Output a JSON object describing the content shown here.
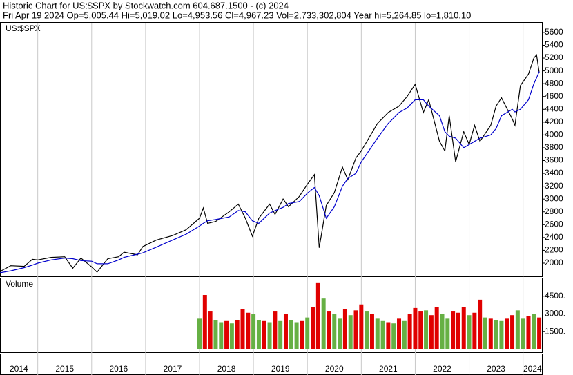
{
  "header": {
    "title": "Historic Chart for US:$SPX by Stockwatch.com 604.687.1500 - (c) 2024",
    "quote": "Fri Apr 19 2024   Op=5,005.44   Hi=5,019.02   Lo=4,953.56   Cl=4,967.23   Vol=2,733,302,804   Year hi=5,264.85   lo=1,810.10"
  },
  "chart_data": [
    {
      "type": "line",
      "label": "US:$SPX",
      "x": [
        2014.3,
        2014.5,
        2014.75,
        2014.9,
        2015.0,
        2015.25,
        2015.5,
        2015.65,
        2015.8,
        2016.0,
        2016.1,
        2016.3,
        2016.5,
        2016.6,
        2016.85,
        2016.95,
        2017.2,
        2017.5,
        2017.75,
        2018.0,
        2018.07,
        2018.15,
        2018.3,
        2018.55,
        2018.72,
        2018.85,
        2018.98,
        2019.1,
        2019.3,
        2019.4,
        2019.55,
        2019.65,
        2019.85,
        2020.0,
        2020.13,
        2020.22,
        2020.35,
        2020.5,
        2020.65,
        2020.75,
        2020.9,
        2021.0,
        2021.3,
        2021.5,
        2021.7,
        2021.85,
        2022.0,
        2022.15,
        2022.25,
        2022.45,
        2022.55,
        2022.63,
        2022.75,
        2022.9,
        2023.0,
        2023.1,
        2023.2,
        2023.4,
        2023.5,
        2023.6,
        2023.8,
        2023.85,
        2023.95,
        2024.1,
        2024.2,
        2024.25,
        2024.3
      ],
      "series": [
        {
          "color": "#000000",
          "values": [
            1870,
            1960,
            1950,
            2060,
            2050,
            2090,
            2100,
            1920,
            2080,
            1940,
            1860,
            2070,
            2100,
            2170,
            2130,
            2260,
            2360,
            2430,
            2520,
            2700,
            2860,
            2620,
            2650,
            2800,
            2920,
            2700,
            2420,
            2700,
            2920,
            2760,
            3000,
            2880,
            3040,
            3230,
            3380,
            2240,
            2900,
            3100,
            3500,
            3300,
            3640,
            3750,
            4180,
            4350,
            4450,
            4600,
            4790,
            4350,
            4550,
            3900,
            3750,
            4300,
            3580,
            4050,
            3850,
            4150,
            3900,
            4150,
            4450,
            4580,
            4250,
            4150,
            4770,
            4950,
            5200,
            5250,
            4967.23
          ]
        },
        {
          "color": "#0000cc",
          "values": [
            1850,
            1880,
            1930,
            1970,
            2000,
            2050,
            2080,
            2070,
            2040,
            2030,
            1990,
            1990,
            2050,
            2090,
            2140,
            2160,
            2250,
            2360,
            2450,
            2580,
            2620,
            2660,
            2680,
            2720,
            2820,
            2800,
            2660,
            2620,
            2780,
            2820,
            2870,
            2930,
            2960,
            3090,
            3180,
            3050,
            2700,
            2880,
            3200,
            3320,
            3400,
            3580,
            3950,
            4180,
            4350,
            4420,
            4550,
            4550,
            4450,
            4300,
            4050,
            3980,
            3950,
            3800,
            3850,
            3900,
            3950,
            4000,
            4100,
            4300,
            4400,
            4360,
            4400,
            4550,
            4800,
            4890,
            4990
          ]
        }
      ],
      "xlim": [
        2014.3,
        2024.35
      ],
      "xticks": [
        2014,
        2015,
        2016,
        2017,
        2018,
        2019,
        2020,
        2021,
        2022,
        2023,
        2024
      ],
      "ylim": [
        1795,
        5750
      ],
      "yticks": [
        2000,
        2200,
        2400,
        2600,
        2800,
        3000,
        3200,
        3400,
        3600,
        3800,
        4000,
        4200,
        4400,
        4600,
        4800,
        5000,
        5200,
        5400,
        5600
      ],
      "grid": true
    },
    {
      "type": "bar",
      "label": "Volume",
      "x": [
        2018.0,
        2018.1,
        2018.2,
        2018.3,
        2018.4,
        2018.5,
        2018.6,
        2018.7,
        2018.8,
        2018.9,
        2019.0,
        2019.1,
        2019.2,
        2019.3,
        2019.4,
        2019.5,
        2019.6,
        2019.7,
        2019.8,
        2019.9,
        2020.0,
        2020.1,
        2020.2,
        2020.3,
        2020.4,
        2020.5,
        2020.6,
        2020.7,
        2020.8,
        2020.9,
        2021.0,
        2021.1,
        2021.2,
        2021.3,
        2021.4,
        2021.5,
        2021.6,
        2021.7,
        2021.8,
        2021.9,
        2022.0,
        2022.1,
        2022.2,
        2022.3,
        2022.4,
        2022.5,
        2022.6,
        2022.7,
        2022.8,
        2022.9,
        2023.0,
        2023.1,
        2023.2,
        2023.3,
        2023.4,
        2023.5,
        2023.6,
        2023.7,
        2023.8,
        2023.9,
        2024.0,
        2024.1,
        2024.2,
        2024.3
      ],
      "values": [
        2600,
        4600,
        3200,
        2500,
        2300,
        2400,
        2200,
        2500,
        3400,
        3100,
        3000,
        2500,
        2400,
        2300,
        3200,
        2400,
        3000,
        2500,
        2300,
        2400,
        2700,
        3600,
        5600,
        4300,
        3200,
        3000,
        2600,
        3400,
        2900,
        3300,
        3800,
        3200,
        3000,
        2600,
        2400,
        2300,
        2200,
        2600,
        2400,
        3000,
        3500,
        3200,
        3300,
        2900,
        3600,
        3000,
        2600,
        3200,
        3100,
        3600,
        2900,
        3100,
        4200,
        2700,
        2600,
        2500,
        2400,
        2600,
        2900,
        3300,
        2600,
        2800,
        3000,
        2700
      ],
      "colors": [
        "#66b044",
        "#e00000",
        "#e00000",
        "#66b044",
        "#66b044",
        "#e00000",
        "#66b044",
        "#e00000",
        "#e00000",
        "#e00000",
        "#66b044",
        "#66b044",
        "#e00000",
        "#66b044",
        "#e00000",
        "#66b044",
        "#e00000",
        "#66b044",
        "#66b044",
        "#e00000",
        "#66b044",
        "#e00000",
        "#e00000",
        "#66b044",
        "#e00000",
        "#66b044",
        "#66b044",
        "#e00000",
        "#66b044",
        "#e00000",
        "#e00000",
        "#66b044",
        "#e00000",
        "#66b044",
        "#66b044",
        "#e00000",
        "#66b044",
        "#e00000",
        "#66b044",
        "#e00000",
        "#e00000",
        "#e00000",
        "#66b044",
        "#e00000",
        "#e00000",
        "#66b044",
        "#66b044",
        "#e00000",
        "#e00000",
        "#e00000",
        "#66b044",
        "#e00000",
        "#e00000",
        "#66b044",
        "#e00000",
        "#66b044",
        "#66b044",
        "#e00000",
        "#e00000",
        "#66b044",
        "#66b044",
        "#e00000",
        "#66b044",
        "#e00000"
      ],
      "xlim": [
        2014.3,
        2024.35
      ],
      "ylim": [
        0,
        5940
      ],
      "yticks": [
        {
          "value": 1500,
          "label": "1500."
        },
        {
          "value": 3000,
          "label": "3000."
        },
        {
          "value": 4500,
          "label": "4500."
        }
      ]
    }
  ]
}
